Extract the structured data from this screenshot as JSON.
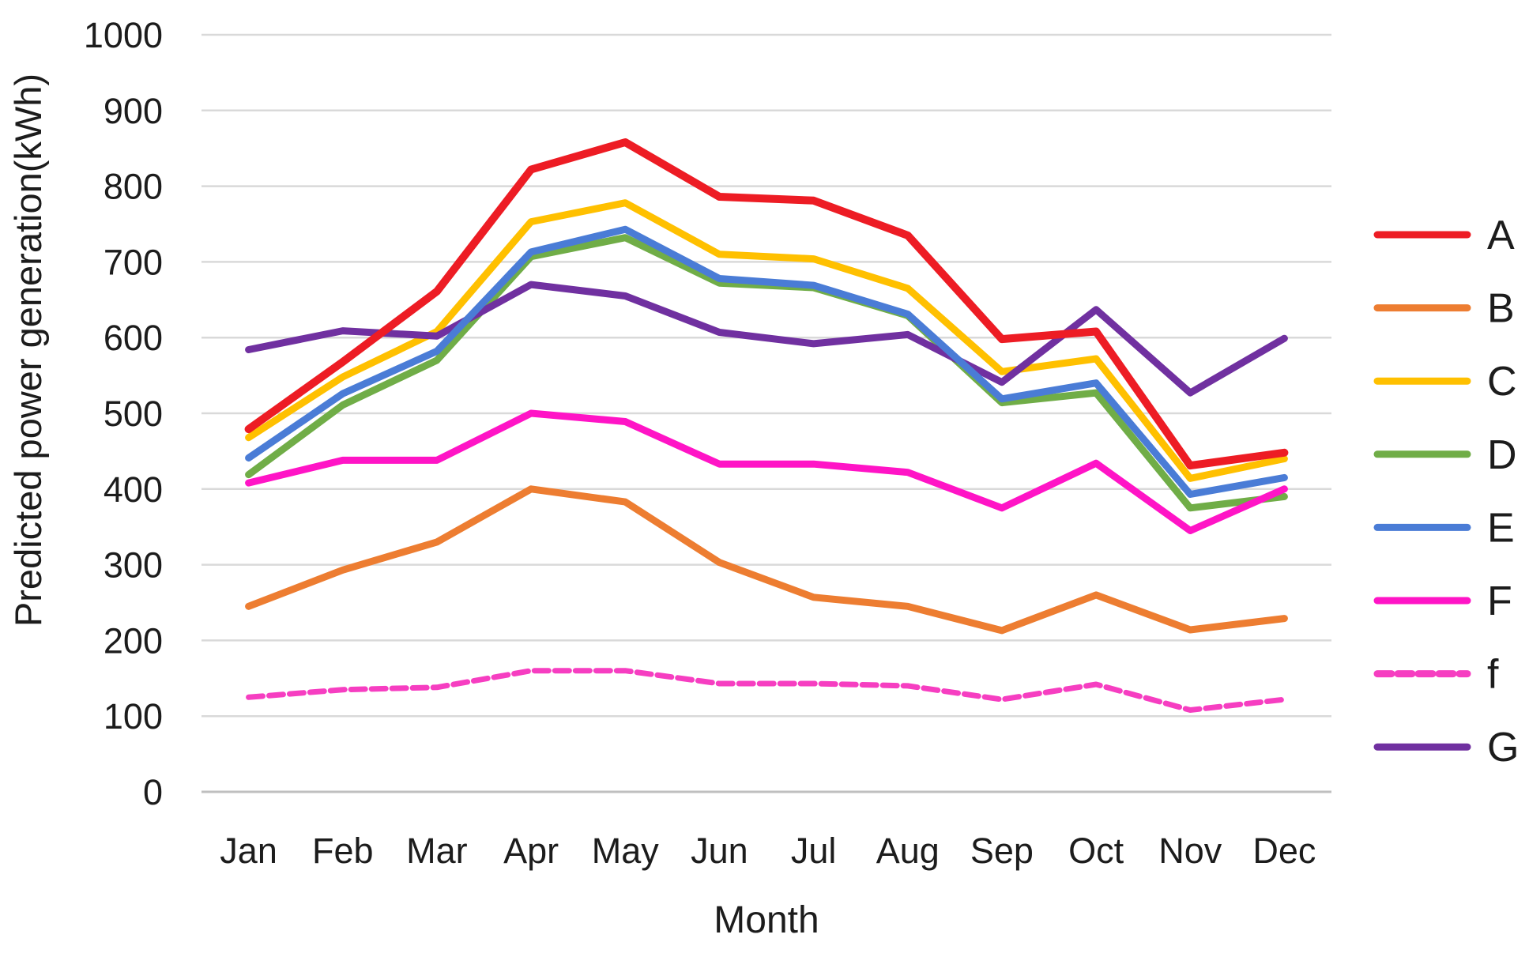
{
  "chart_data": {
    "type": "line",
    "title": "",
    "xlabel": "Month",
    "ylabel": "Predicted power generation(kWh)",
    "categories": [
      "Jan",
      "Feb",
      "Mar",
      "Apr",
      "May",
      "Jun",
      "Jul",
      "Aug",
      "Sep",
      "Oct",
      "Nov",
      "Dec"
    ],
    "ylim": [
      0,
      1000
    ],
    "ytick_step": 100,
    "grid": "horizontal-only",
    "legend_position": "right",
    "axis_text_color": "#1c1c1c",
    "grid_color": "#d9d9d9",
    "zero_line_color": "#bfbfbf",
    "series": [
      {
        "name": "A",
        "color": "#ed1c24",
        "dash": false,
        "width": 10,
        "values": [
          479,
          568,
          661,
          822,
          858,
          786,
          781,
          735,
          598,
          608,
          431,
          448
        ]
      },
      {
        "name": "B",
        "color": "#ed7d31",
        "dash": false,
        "width": 9,
        "values": [
          245,
          293,
          330,
          400,
          383,
          303,
          257,
          245,
          213,
          260,
          214,
          229
        ]
      },
      {
        "name": "C",
        "color": "#ffc000",
        "dash": false,
        "width": 9,
        "values": [
          468,
          548,
          608,
          753,
          778,
          710,
          704,
          665,
          555,
          572,
          414,
          440
        ]
      },
      {
        "name": "D",
        "color": "#70ad47",
        "dash": false,
        "width": 9,
        "values": [
          419,
          511,
          570,
          707,
          732,
          672,
          666,
          629,
          514,
          527,
          375,
          390
        ]
      },
      {
        "name": "E",
        "color": "#4a7cd6",
        "dash": false,
        "width": 9,
        "values": [
          441,
          526,
          582,
          713,
          743,
          678,
          669,
          631,
          519,
          540,
          393,
          415
        ]
      },
      {
        "name": "F",
        "color": "#ff14c6",
        "dash": false,
        "width": 9,
        "values": [
          408,
          438,
          438,
          500,
          489,
          433,
          433,
          422,
          375,
          434,
          345,
          400
        ]
      },
      {
        "name": "f",
        "color": "#f63ec1",
        "dash": true,
        "width": 7,
        "values": [
          125,
          135,
          138,
          160,
          160,
          143,
          143,
          140,
          122,
          142,
          108,
          122
        ]
      },
      {
        "name": "G",
        "color": "#7030a0",
        "dash": false,
        "width": 9,
        "values": [
          584,
          609,
          602,
          670,
          655,
          607,
          592,
          604,
          541,
          637,
          527,
          599
        ]
      }
    ],
    "draw_order": [
      "B",
      "C",
      "D",
      "f",
      "F",
      "G",
      "E",
      "A"
    ]
  }
}
